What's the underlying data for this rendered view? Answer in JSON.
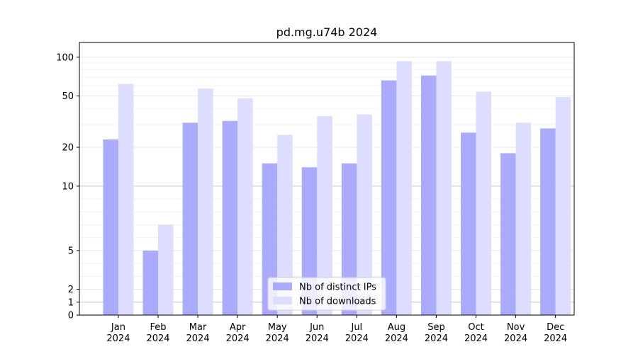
{
  "chart_data": {
    "type": "bar",
    "title": "pd.mg.u74b 2024",
    "xlabel": "",
    "ylabel": "",
    "y_scale": "symlog",
    "y_linear_threshold": 10,
    "ylim": [
      0,
      130
    ],
    "yticks": [
      0,
      1,
      2,
      5,
      10,
      20,
      50,
      100
    ],
    "categories": [
      "Jan\n2024",
      "Feb\n2024",
      "Mar\n2024",
      "Apr\n2024",
      "May\n2024",
      "Jun\n2024",
      "Jul\n2024",
      "Aug\n2024",
      "Sep\n2024",
      "Oct\n2024",
      "Nov\n2024",
      "Dec\n2024"
    ],
    "category_months": [
      "Jan",
      "Feb",
      "Mar",
      "Apr",
      "May",
      "Jun",
      "Jul",
      "Aug",
      "Sep",
      "Oct",
      "Nov",
      "Dec"
    ],
    "category_year": "2024",
    "series": [
      {
        "name": "Nb of distinct IPs",
        "color": "#aaaaff",
        "values": [
          23,
          5,
          31,
          32,
          15,
          14,
          15,
          66,
          72,
          26,
          18,
          28
        ]
      },
      {
        "name": "Nb of downloads",
        "color": "#ddddff",
        "values": [
          62,
          7,
          57,
          48,
          25,
          35,
          36,
          93,
          93,
          54,
          31,
          49
        ]
      }
    ],
    "legend_position": "lower-center",
    "grid": "horizontal"
  }
}
